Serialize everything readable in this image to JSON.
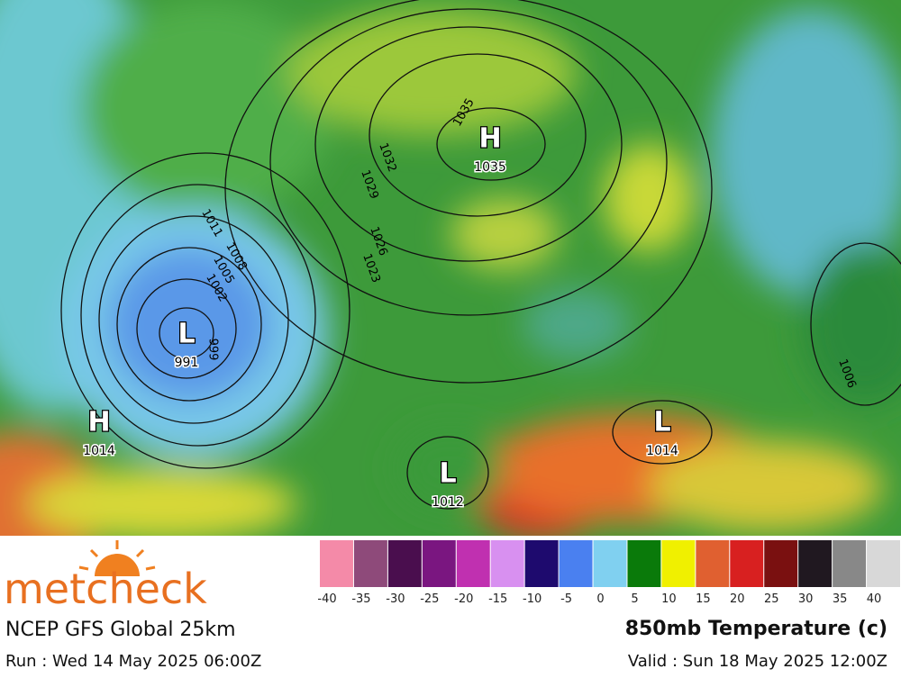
{
  "brand": "metcheck",
  "model": "NCEP GFS Global 25km",
  "run": "Run : Wed 14 May 2025 06:00Z",
  "field": "850mb Temperature (c)",
  "valid": "Valid : Sun 18 May 2025 12:00Z",
  "legend": {
    "ticks": [
      -40,
      -35,
      -30,
      -25,
      -20,
      -15,
      -10,
      -5,
      0,
      5,
      10,
      15,
      20,
      25,
      30,
      35,
      40
    ],
    "colors": [
      "#f48aa8",
      "#8e4a7a",
      "#4a0e4e",
      "#7a1680",
      "#c030b0",
      "#d890f0",
      "#1e0a6e",
      "#4a80f0",
      "#80d0f0",
      "#0a7a0a",
      "#f0f000",
      "#e06030",
      "#d82020",
      "#7a1010",
      "#201820",
      "#888888",
      "#d8d8d8"
    ]
  },
  "systems": [
    {
      "symbol": "H",
      "pressure": "1035"
    },
    {
      "symbol": "L",
      "pressure": "991"
    },
    {
      "symbol": "H",
      "pressure": "1014"
    },
    {
      "symbol": "L",
      "pressure": "1012"
    },
    {
      "symbol": "L",
      "pressure": "1014"
    }
  ],
  "isobar_labels": [
    "1035",
    "1032",
    "1029",
    "1026",
    "1023",
    "1011",
    "1008",
    "1005",
    "1002",
    "999",
    "1006"
  ]
}
